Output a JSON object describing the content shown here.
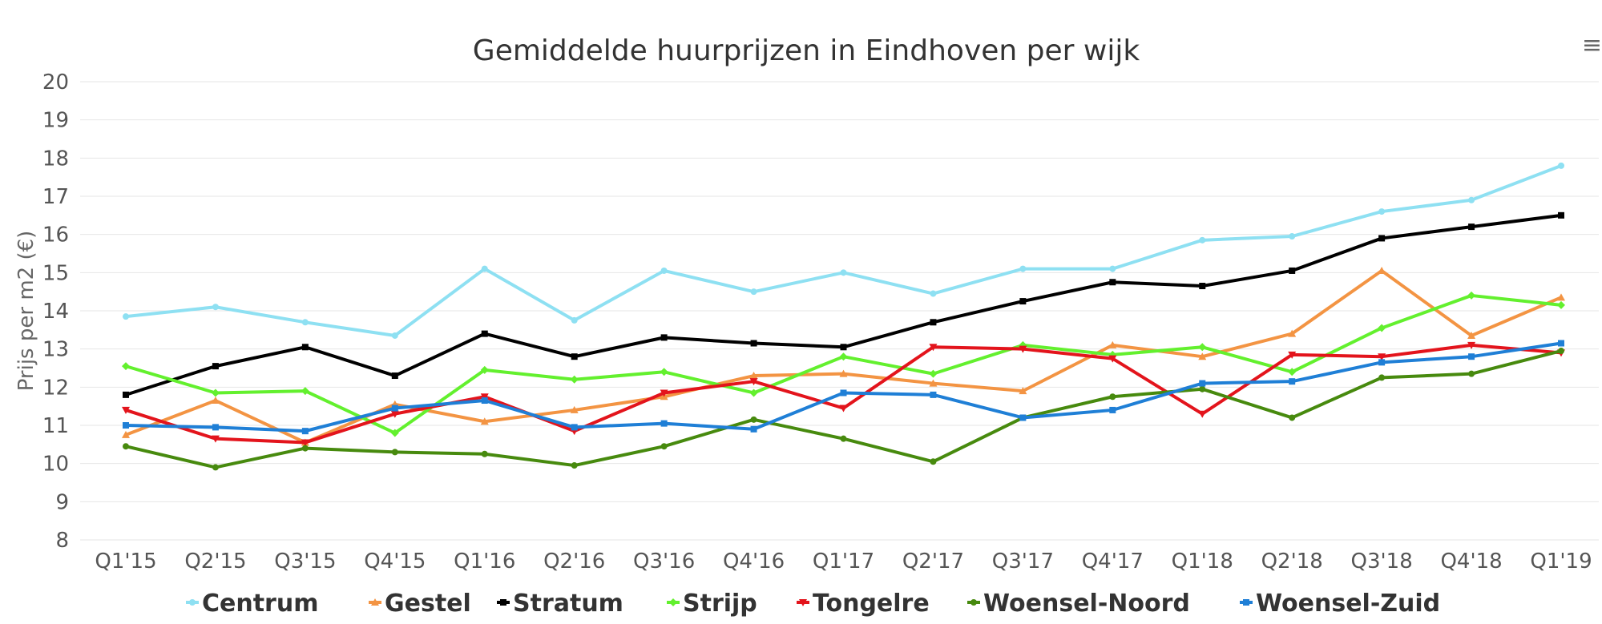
{
  "menu_icon": "hamburger-menu-icon",
  "menu_glyph": "≡",
  "chart_data": {
    "type": "line",
    "title": "Gemiddelde huurprijzen in Eindhoven per wijk",
    "xlabel": "",
    "ylabel": "Prijs per m2 (€)",
    "ylim": [
      8,
      20
    ],
    "yticks": [
      8,
      9,
      10,
      11,
      12,
      13,
      14,
      15,
      16,
      17,
      18,
      19,
      20
    ],
    "grid": true,
    "legend_position": "bottom",
    "categories": [
      "Q1'15",
      "Q2'15",
      "Q3'15",
      "Q4'15",
      "Q1'16",
      "Q2'16",
      "Q3'16",
      "Q4'16",
      "Q1'17",
      "Q2'17",
      "Q3'17",
      "Q4'17",
      "Q1'18",
      "Q2'18",
      "Q3'18",
      "Q4'18",
      "Q1'19"
    ],
    "series": [
      {
        "name": "Centrum",
        "color": "#8ee0f2",
        "marker": "circle",
        "values": [
          13.85,
          14.1,
          13.7,
          13.35,
          15.1,
          13.75,
          15.05,
          14.5,
          15.0,
          14.45,
          15.1,
          15.1,
          15.85,
          15.95,
          16.6,
          16.9,
          17.8
        ]
      },
      {
        "name": "Gestel",
        "color": "#f39443",
        "marker": "triangle",
        "values": [
          10.75,
          11.65,
          10.55,
          11.55,
          11.1,
          11.4,
          11.75,
          12.3,
          12.35,
          12.1,
          11.9,
          13.1,
          12.8,
          13.4,
          15.05,
          13.35,
          14.35
        ]
      },
      {
        "name": "Stratum",
        "color": "#000000",
        "marker": "square",
        "values": [
          11.8,
          12.55,
          13.05,
          12.3,
          13.4,
          12.8,
          13.3,
          13.15,
          13.05,
          13.7,
          14.25,
          14.75,
          14.65,
          15.05,
          15.9,
          16.2,
          16.5
        ]
      },
      {
        "name": "Strijp",
        "color": "#63f02e",
        "marker": "diamond",
        "values": [
          12.55,
          11.85,
          11.9,
          10.8,
          12.45,
          12.2,
          12.4,
          11.85,
          12.8,
          12.35,
          13.1,
          12.85,
          13.05,
          12.4,
          13.55,
          14.4,
          14.15
        ]
      },
      {
        "name": "Tongelre",
        "color": "#e3141c",
        "marker": "triangle-down",
        "values": [
          11.4,
          10.65,
          10.55,
          11.3,
          11.75,
          10.85,
          11.85,
          12.15,
          11.45,
          13.05,
          13.0,
          12.75,
          11.3,
          12.85,
          12.8,
          13.1,
          12.9
        ]
      },
      {
        "name": "Woensel-Noord",
        "color": "#478a0e",
        "marker": "circle",
        "values": [
          10.45,
          9.9,
          10.4,
          10.3,
          10.25,
          9.95,
          10.45,
          11.15,
          10.65,
          10.05,
          11.2,
          11.75,
          11.95,
          11.2,
          12.25,
          12.35,
          12.95
        ]
      },
      {
        "name": "Woensel-Zuid",
        "color": "#1f7fd6",
        "marker": "square",
        "values": [
          11.0,
          10.95,
          10.85,
          11.45,
          11.65,
          10.95,
          11.05,
          10.9,
          11.85,
          11.8,
          11.2,
          11.4,
          12.1,
          12.15,
          12.65,
          12.8,
          13.15
        ]
      }
    ]
  }
}
